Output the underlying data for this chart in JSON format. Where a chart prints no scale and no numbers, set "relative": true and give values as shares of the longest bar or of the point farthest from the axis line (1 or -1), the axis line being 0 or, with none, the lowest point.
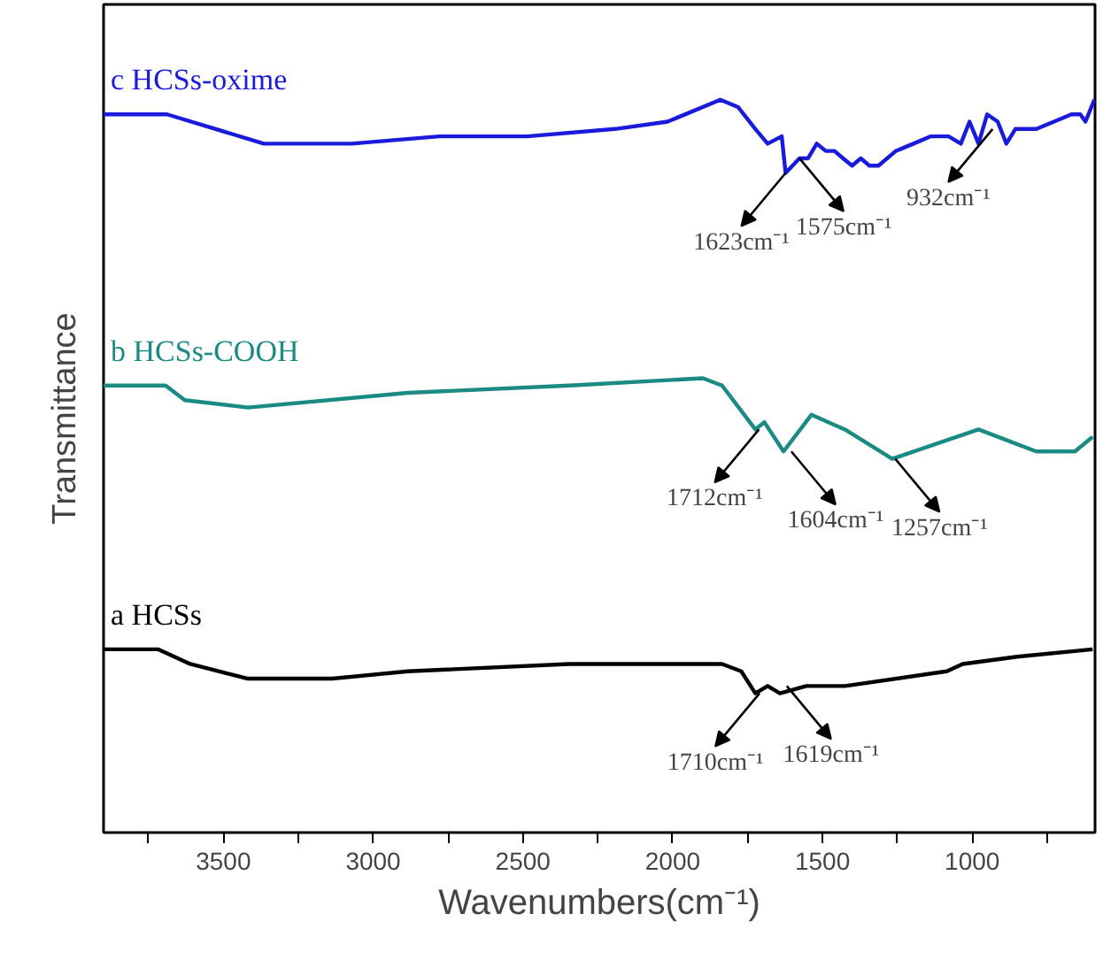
{
  "chart_data": {
    "type": "line",
    "relative": true,
    "xlabel": "Wavenumbers(cm⁻¹)",
    "ylabel": "Transmittance",
    "xlim": [
      3900,
      590
    ],
    "xticks": [
      {
        "value": 3750,
        "label": null
      },
      3500,
      {
        "value": 3250,
        "label": null
      },
      3000,
      {
        "value": 2750,
        "label": null
      },
      2500,
      {
        "value": 2250,
        "label": null
      },
      2000,
      {
        "value": 1750,
        "label": null
      },
      1500,
      {
        "value": 1250,
        "label": null
      },
      1000,
      {
        "value": 750,
        "label": null
      }
    ],
    "tick_labels": "x",
    "grid": false,
    "marker": "none",
    "line_style": "solid",
    "series": [
      {
        "name": "c HCSs-oxime",
        "color": "#1a1adb",
        "x": [
          3900,
          3688,
          3365,
          3072,
          2779,
          2486,
          2193,
          2017,
          1841,
          1782,
          1724,
          1683,
          1636,
          1623,
          1577,
          1548,
          1519,
          1489,
          1460,
          1431,
          1401,
          1372,
          1343,
          1313,
          1255,
          1196,
          1138,
          1079,
          1038,
          1009,
          979,
          950,
          915,
          886,
          856,
          786,
          727,
          669,
          639,
          622,
          592
        ],
        "values": [
          0.98,
          0.98,
          0.94,
          0.94,
          0.95,
          0.95,
          0.96,
          0.97,
          1.0,
          0.99,
          0.96,
          0.94,
          0.95,
          0.9,
          0.92,
          0.92,
          0.94,
          0.93,
          0.93,
          0.92,
          0.91,
          0.92,
          0.91,
          0.91,
          0.93,
          0.94,
          0.95,
          0.95,
          0.94,
          0.97,
          0.94,
          0.98,
          0.97,
          0.94,
          0.96,
          0.96,
          0.97,
          0.98,
          0.98,
          0.97,
          1.0
        ]
      },
      {
        "name": "b HCSs-COOH",
        "color": "#1a8a82",
        "x": [
          3900,
          3693,
          3629,
          3418,
          2884,
          2345,
          1899,
          1835,
          1724,
          1694,
          1630,
          1537,
          1425,
          1267,
          979,
          786,
          657,
          598
        ],
        "values": [
          0.61,
          0.61,
          0.59,
          0.58,
          0.6,
          0.61,
          0.62,
          0.61,
          0.55,
          0.56,
          0.52,
          0.57,
          0.55,
          0.51,
          0.55,
          0.52,
          0.52,
          0.54
        ]
      },
      {
        "name": "a HCSs",
        "color": "#000000",
        "x": [
          3900,
          3717,
          3611,
          3418,
          3137,
          2884,
          2345,
          1835,
          1771,
          1724,
          1683,
          1642,
          1554,
          1425,
          1085,
          1032,
          850,
          598
        ],
        "values": [
          0.25,
          0.25,
          0.23,
          0.21,
          0.21,
          0.22,
          0.23,
          0.23,
          0.22,
          0.19,
          0.2,
          0.19,
          0.2,
          0.2,
          0.22,
          0.23,
          0.24,
          0.25
        ]
      }
    ],
    "annotations": [
      {
        "text": "1623cm⁻¹",
        "x": 1623,
        "y": 0.9
      },
      {
        "text": "1575cm⁻¹",
        "x": 1577,
        "y": 0.92
      },
      {
        "text": "1712cm⁻¹",
        "x": 1712,
        "y": 0.55
      },
      {
        "text": "1604cm⁻¹",
        "x": 1604,
        "y": 0.52
      },
      {
        "text": "932cm⁻¹",
        "x": 932,
        "y": 0.96
      },
      {
        "text": "1257cm⁻¹",
        "x": 1257,
        "y": 0.51
      },
      {
        "text": "1710cm⁻¹",
        "x": 1710,
        "y": 0.19
      },
      {
        "text": "1619cm⁻¹",
        "x": 1619,
        "y": 0.2
      }
    ]
  }
}
